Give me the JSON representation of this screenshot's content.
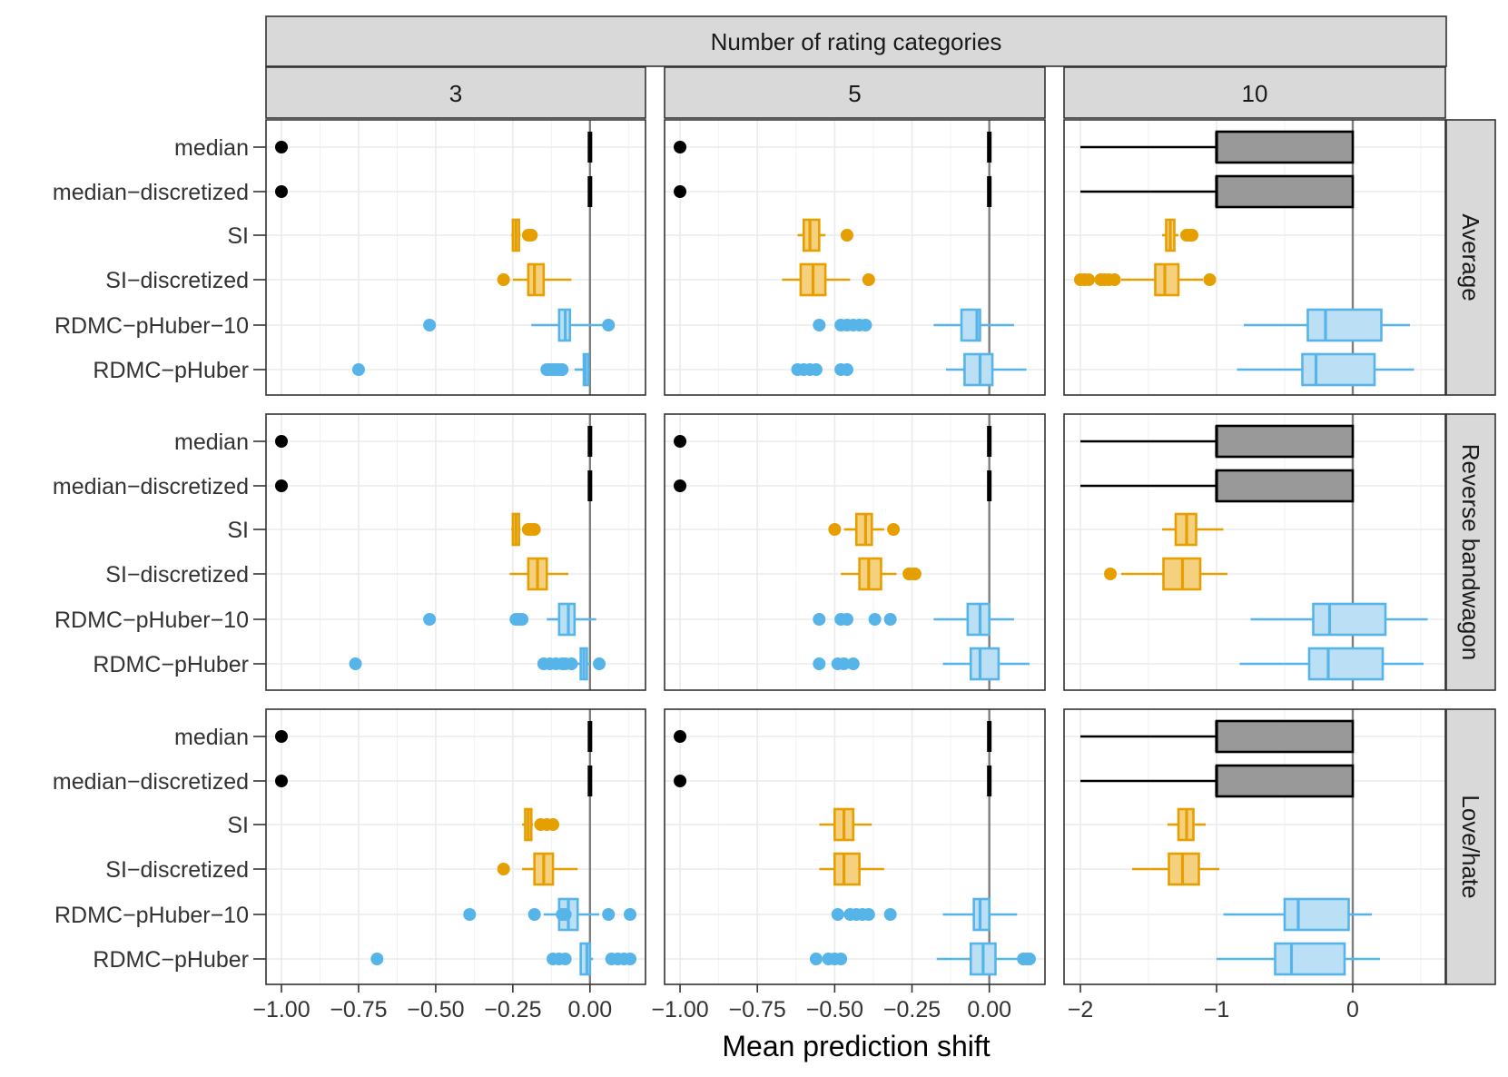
{
  "chart_data": {
    "type": "boxplot",
    "xlabel": "Mean prediction shift",
    "col_strip_title": "Number of rating categories",
    "columns": [
      {
        "label": "3",
        "xlim": [
          -1.05,
          0.18
        ],
        "ticks": [
          -1.0,
          -0.75,
          -0.5,
          -0.25,
          0.0
        ],
        "tick_labels": [
          "−1.00",
          "−0.75",
          "−0.50",
          "−0.25",
          "0.00"
        ]
      },
      {
        "label": "5",
        "xlim": [
          -1.05,
          0.18
        ],
        "ticks": [
          -1.0,
          -0.75,
          -0.5,
          -0.25,
          0.0
        ],
        "tick_labels": [
          "−1.00",
          "−0.75",
          "−0.50",
          "−0.25",
          "0.00"
        ]
      },
      {
        "label": "10",
        "xlim": [
          -2.12,
          0.68
        ],
        "ticks": [
          -2,
          -1,
          0
        ],
        "tick_labels": [
          "−2",
          "−1",
          "0"
        ]
      }
    ],
    "rows": [
      "Average",
      "Reverse bandwagon",
      "Love/hate"
    ],
    "methods": [
      "median",
      "median−discretized",
      "SI",
      "SI−discretized",
      "RDMC−pHuber−10",
      "RDMC−pHuber"
    ],
    "method_colors": [
      "#000000",
      "#000000",
      "#E69F00",
      "#E69F00",
      "#56B4E9",
      "#56B4E9"
    ],
    "method_fills": [
      "#999999",
      "#999999",
      "#F5D07F",
      "#F5D07F",
      "#BBE0F6",
      "#BBE0F6"
    ],
    "panels": [
      [
        [
          {
            "wl": -0.0,
            "q1": -0.0,
            "med": 0.0,
            "q3": 0.0,
            "wh": 0.0,
            "out": [
              -1.0
            ]
          },
          {
            "wl": -0.0,
            "q1": -0.0,
            "med": 0.0,
            "q3": 0.0,
            "wh": 0.0,
            "out": [
              -1.0
            ]
          },
          {
            "wl": -0.255,
            "q1": -0.25,
            "med": -0.24,
            "q3": -0.23,
            "wh": -0.225,
            "out": [
              -0.2,
              -0.19
            ]
          },
          {
            "wl": -0.25,
            "q1": -0.2,
            "med": -0.18,
            "q3": -0.15,
            "wh": -0.06,
            "out": [
              -0.28
            ]
          },
          {
            "wl": -0.19,
            "q1": -0.1,
            "med": -0.08,
            "q3": -0.065,
            "wh": 0.04,
            "out": [
              -0.52,
              0.06
            ]
          },
          {
            "wl": -0.05,
            "q1": -0.02,
            "med": -0.015,
            "q3": -0.005,
            "wh": 0.0,
            "out": [
              -0.75,
              -0.14,
              -0.13,
              -0.12,
              -0.11,
              -0.1,
              -0.09
            ]
          }
        ],
        [
          {
            "wl": -0.0,
            "q1": -0.0,
            "med": 0.0,
            "q3": 0.0,
            "wh": 0.0,
            "out": [
              -1.0
            ]
          },
          {
            "wl": -0.0,
            "q1": -0.0,
            "med": 0.0,
            "q3": 0.0,
            "wh": 0.0,
            "out": [
              -1.0
            ]
          },
          {
            "wl": -0.255,
            "q1": -0.25,
            "med": -0.24,
            "q3": -0.23,
            "wh": -0.225,
            "out": [
              -0.2,
              -0.19,
              -0.18
            ]
          },
          {
            "wl": -0.26,
            "q1": -0.2,
            "med": -0.17,
            "q3": -0.14,
            "wh": -0.07,
            "out": []
          },
          {
            "wl": -0.14,
            "q1": -0.1,
            "med": -0.07,
            "q3": -0.05,
            "wh": 0.02,
            "out": [
              -0.52,
              -0.24,
              -0.23,
              -0.22
            ]
          },
          {
            "wl": -0.06,
            "q1": -0.03,
            "med": -0.02,
            "q3": -0.01,
            "wh": 0.0,
            "out": [
              -0.76,
              -0.15,
              -0.13,
              -0.11,
              -0.09,
              -0.08,
              -0.06,
              0.03
            ]
          }
        ],
        [
          {
            "wl": -0.0,
            "q1": -0.0,
            "med": 0.0,
            "q3": 0.0,
            "wh": 0.0,
            "out": [
              -1.0
            ]
          },
          {
            "wl": -0.0,
            "q1": -0.0,
            "med": 0.0,
            "q3": 0.0,
            "wh": 0.0,
            "out": [
              -1.0
            ]
          },
          {
            "wl": -0.22,
            "q1": -0.21,
            "med": -0.2,
            "q3": -0.19,
            "wh": -0.185,
            "out": [
              -0.16,
              -0.14,
              -0.12
            ]
          },
          {
            "wl": -0.22,
            "q1": -0.18,
            "med": -0.15,
            "q3": -0.12,
            "wh": -0.04,
            "out": [
              -0.28
            ]
          },
          {
            "wl": -0.15,
            "q1": -0.1,
            "med": -0.07,
            "q3": -0.04,
            "wh": 0.03,
            "out": [
              -0.39,
              -0.18,
              -0.09,
              -0.08,
              0.06,
              0.13
            ]
          },
          {
            "wl": -0.02,
            "q1": -0.03,
            "med": -0.01,
            "q3": 0.0,
            "wh": 0.01,
            "out": [
              -0.69,
              -0.12,
              -0.1,
              -0.08,
              0.07,
              0.09,
              0.11,
              0.13
            ]
          }
        ]
      ],
      [
        [
          {
            "wl": -0.0,
            "q1": -0.0,
            "med": 0.0,
            "q3": 0.0,
            "wh": 0.0,
            "out": [
              -1.0
            ]
          },
          {
            "wl": -0.0,
            "q1": -0.0,
            "med": 0.0,
            "q3": 0.0,
            "wh": 0.0,
            "out": [
              -1.0
            ]
          },
          {
            "wl": -0.62,
            "q1": -0.6,
            "med": -0.58,
            "q3": -0.55,
            "wh": -0.53,
            "out": [
              -0.46
            ]
          },
          {
            "wl": -0.67,
            "q1": -0.61,
            "med": -0.57,
            "q3": -0.53,
            "wh": -0.45,
            "out": [
              -0.39
            ]
          },
          {
            "wl": -0.18,
            "q1": -0.09,
            "med": -0.04,
            "q3": -0.03,
            "wh": 0.08,
            "out": [
              -0.55,
              -0.48,
              -0.46,
              -0.44,
              -0.42,
              -0.4
            ]
          },
          {
            "wl": -0.14,
            "q1": -0.08,
            "med": -0.03,
            "q3": 0.01,
            "wh": 0.12,
            "out": [
              -0.62,
              -0.6,
              -0.58,
              -0.56,
              -0.48,
              -0.46
            ]
          }
        ],
        [
          {
            "wl": -0.0,
            "q1": -0.0,
            "med": 0.0,
            "q3": 0.0,
            "wh": 0.0,
            "out": [
              -1.0
            ]
          },
          {
            "wl": -0.0,
            "q1": -0.0,
            "med": 0.0,
            "q3": 0.0,
            "wh": 0.0,
            "out": [
              -1.0
            ]
          },
          {
            "wl": -0.47,
            "q1": -0.43,
            "med": -0.4,
            "q3": -0.38,
            "wh": -0.34,
            "out": [
              -0.5,
              -0.31
            ]
          },
          {
            "wl": -0.48,
            "q1": -0.42,
            "med": -0.39,
            "q3": -0.35,
            "wh": -0.3,
            "out": [
              -0.26,
              -0.25,
              -0.24
            ]
          },
          {
            "wl": -0.18,
            "q1": -0.07,
            "med": -0.03,
            "q3": 0.0,
            "wh": 0.08,
            "out": [
              -0.55,
              -0.48,
              -0.46,
              -0.37,
              -0.32
            ]
          },
          {
            "wl": -0.15,
            "q1": -0.06,
            "med": -0.03,
            "q3": 0.03,
            "wh": 0.13,
            "out": [
              -0.55,
              -0.49,
              -0.47,
              -0.44
            ]
          }
        ],
        [
          {
            "wl": -0.0,
            "q1": -0.0,
            "med": 0.0,
            "q3": 0.0,
            "wh": 0.0,
            "out": [
              -1.0
            ]
          },
          {
            "wl": -0.0,
            "q1": -0.0,
            "med": 0.0,
            "q3": 0.0,
            "wh": 0.0,
            "out": [
              -1.0
            ]
          },
          {
            "wl": -0.55,
            "q1": -0.5,
            "med": -0.47,
            "q3": -0.44,
            "wh": -0.38,
            "out": []
          },
          {
            "wl": -0.55,
            "q1": -0.5,
            "med": -0.47,
            "q3": -0.42,
            "wh": -0.34,
            "out": []
          },
          {
            "wl": -0.15,
            "q1": -0.05,
            "med": -0.03,
            "q3": 0.0,
            "wh": 0.09,
            "out": [
              -0.49,
              -0.45,
              -0.43,
              -0.41,
              -0.39,
              -0.32
            ]
          },
          {
            "wl": -0.17,
            "q1": -0.06,
            "med": -0.02,
            "q3": 0.02,
            "wh": 0.09,
            "out": [
              -0.56,
              -0.52,
              -0.5,
              -0.48,
              0.11,
              0.12,
              0.13
            ]
          }
        ]
      ],
      [
        [
          {
            "wl": -2.0,
            "q1": -1.0,
            "med": -1.0,
            "q3": 0.0,
            "wh": 0.0,
            "out": []
          },
          {
            "wl": -2.0,
            "q1": -1.0,
            "med": -1.0,
            "q3": 0.0,
            "wh": 0.0,
            "out": []
          },
          {
            "wl": -1.4,
            "q1": -1.37,
            "med": -1.34,
            "q3": -1.31,
            "wh": -1.28,
            "out": [
              -1.22,
              -1.2,
              -1.18
            ]
          },
          {
            "wl": -1.7,
            "q1": -1.45,
            "med": -1.38,
            "q3": -1.28,
            "wh": -1.1,
            "out": [
              -2.0,
              -1.97,
              -1.94,
              -1.85,
              -1.82,
              -1.79,
              -1.75,
              -1.05
            ]
          },
          {
            "wl": -0.8,
            "q1": -0.33,
            "med": -0.2,
            "q3": 0.21,
            "wh": 0.42,
            "out": []
          },
          {
            "wl": -0.85,
            "q1": -0.37,
            "med": -0.27,
            "q3": 0.16,
            "wh": 0.45,
            "out": []
          }
        ],
        [
          {
            "wl": -2.0,
            "q1": -1.0,
            "med": -1.0,
            "q3": 0.0,
            "wh": 0.0,
            "out": []
          },
          {
            "wl": -2.0,
            "q1": -1.0,
            "med": -1.0,
            "q3": 0.0,
            "wh": 0.0,
            "out": []
          },
          {
            "wl": -1.4,
            "q1": -1.3,
            "med": -1.22,
            "q3": -1.15,
            "wh": -0.95,
            "out": []
          },
          {
            "wl": -1.7,
            "q1": -1.39,
            "med": -1.25,
            "q3": -1.12,
            "wh": -0.92,
            "out": [
              -1.78
            ]
          },
          {
            "wl": -0.75,
            "q1": -0.29,
            "med": -0.17,
            "q3": 0.24,
            "wh": 0.55,
            "out": []
          },
          {
            "wl": -0.83,
            "q1": -0.32,
            "med": -0.18,
            "q3": 0.22,
            "wh": 0.52,
            "out": []
          }
        ],
        [
          {
            "wl": -2.0,
            "q1": -1.0,
            "med": -1.0,
            "q3": 0.0,
            "wh": 0.0,
            "out": []
          },
          {
            "wl": -2.0,
            "q1": -1.0,
            "med": -1.0,
            "q3": 0.0,
            "wh": 0.0,
            "out": []
          },
          {
            "wl": -1.36,
            "q1": -1.28,
            "med": -1.22,
            "q3": -1.17,
            "wh": -1.08,
            "out": []
          },
          {
            "wl": -1.62,
            "q1": -1.35,
            "med": -1.25,
            "q3": -1.13,
            "wh": -0.98,
            "out": []
          },
          {
            "wl": -0.95,
            "q1": -0.5,
            "med": -0.4,
            "q3": -0.03,
            "wh": 0.14,
            "out": []
          },
          {
            "wl": -1.0,
            "q1": -0.57,
            "med": -0.45,
            "q3": -0.06,
            "wh": 0.2,
            "out": []
          }
        ]
      ]
    ]
  }
}
